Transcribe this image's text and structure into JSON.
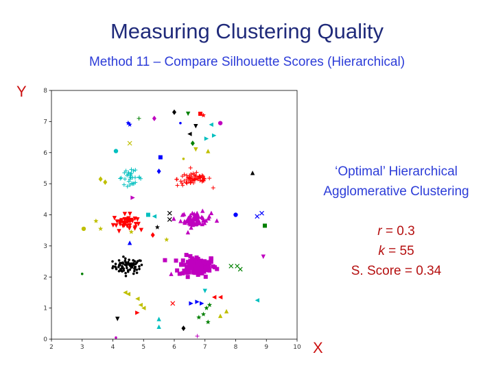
{
  "slide": {
    "title": "Measuring Clustering Quality",
    "subtitle": "Method 11 – Compare Silhouette Scores (Hierarchical)"
  },
  "info": {
    "heading_line1": "‘Optimal’ Hierarchical",
    "heading_line2": "Agglomerative Clustering",
    "r_var": "r",
    "r_value": " = 0.3",
    "k_var": "k",
    "k_value": " = 55",
    "score_text": "S. Score = 0.34",
    "heading_color": "#2c3cd8",
    "stats_color": "#b51010"
  },
  "chart_data": {
    "type": "scatter",
    "xlabel": "X",
    "ylabel": "Y",
    "xlim": [
      2,
      10
    ],
    "ylim": [
      0,
      8
    ],
    "xticks": [
      2,
      3,
      4,
      5,
      6,
      7,
      8,
      9,
      10
    ],
    "yticks": [
      0,
      1,
      2,
      3,
      4,
      5,
      6,
      7,
      8
    ],
    "grid": false,
    "dense_clusters": [
      {
        "name": "black",
        "color": "#000000",
        "marker": "dot",
        "center": [
          4.5,
          2.35
        ],
        "spread": [
          0.45,
          0.22
        ],
        "count": 75
      },
      {
        "name": "magenta-square",
        "color": "#bf00bf",
        "marker": "square",
        "center": [
          6.75,
          2.35
        ],
        "spread": [
          0.55,
          0.3
        ],
        "count": 110
      },
      {
        "name": "red-tri-down",
        "color": "#ff0000",
        "marker": "tri-down",
        "center": [
          4.4,
          3.75
        ],
        "spread": [
          0.35,
          0.22
        ],
        "count": 38
      },
      {
        "name": "magenta-tri-up",
        "color": "#bf00bf",
        "marker": "tri-up",
        "center": [
          6.7,
          3.85
        ],
        "spread": [
          0.45,
          0.22
        ],
        "count": 60
      },
      {
        "name": "cyan-plus",
        "color": "#00bfbf",
        "marker": "plus",
        "center": [
          4.55,
          5.2
        ],
        "spread": [
          0.35,
          0.2
        ],
        "count": 30
      },
      {
        "name": "red-plus",
        "color": "#ff0000",
        "marker": "plus",
        "center": [
          6.65,
          5.15
        ],
        "spread": [
          0.5,
          0.2
        ],
        "count": 60
      }
    ],
    "outliers": [
      {
        "x": 6.0,
        "y": 7.3,
        "m": "diamond",
        "c": "#000000"
      },
      {
        "x": 5.35,
        "y": 7.1,
        "m": "diamond",
        "c": "#bf00bf"
      },
      {
        "x": 4.85,
        "y": 7.1,
        "m": "plus",
        "c": "#008000"
      },
      {
        "x": 4.5,
        "y": 6.95,
        "m": "star",
        "c": "#0000ff"
      },
      {
        "x": 4.55,
        "y": 6.9,
        "m": "star",
        "c": "#0000ff"
      },
      {
        "x": 6.45,
        "y": 7.25,
        "m": "tri-down",
        "c": "#008000"
      },
      {
        "x": 6.85,
        "y": 7.25,
        "m": "square",
        "c": "#ff0000"
      },
      {
        "x": 6.95,
        "y": 7.2,
        "m": "star",
        "c": "#ff0000"
      },
      {
        "x": 6.2,
        "y": 6.95,
        "m": "dot",
        "c": "#0000ff"
      },
      {
        "x": 6.7,
        "y": 6.85,
        "m": "tri-down",
        "c": "#000000"
      },
      {
        "x": 7.2,
        "y": 6.9,
        "m": "tri-left",
        "c": "#00bfbf"
      },
      {
        "x": 7.5,
        "y": 6.95,
        "m": "circle",
        "c": "#bf00bf"
      },
      {
        "x": 6.5,
        "y": 6.6,
        "m": "tri-left",
        "c": "#000000"
      },
      {
        "x": 7.3,
        "y": 6.55,
        "m": "tri-right",
        "c": "#00bfbf"
      },
      {
        "x": 7.05,
        "y": 6.45,
        "m": "tri-right",
        "c": "#00bfbf"
      },
      {
        "x": 6.6,
        "y": 6.3,
        "m": "diamond",
        "c": "#008000"
      },
      {
        "x": 6.7,
        "y": 6.1,
        "m": "tri-down",
        "c": "#bfbf00"
      },
      {
        "x": 7.1,
        "y": 6.05,
        "m": "tri-up",
        "c": "#bfbf00"
      },
      {
        "x": 4.55,
        "y": 6.3,
        "m": "x",
        "c": "#bfbf00"
      },
      {
        "x": 4.1,
        "y": 6.05,
        "m": "circle",
        "c": "#00bfbf"
      },
      {
        "x": 5.55,
        "y": 5.85,
        "m": "square",
        "c": "#0000ff"
      },
      {
        "x": 6.3,
        "y": 5.8,
        "m": "dot",
        "c": "#bfbf00"
      },
      {
        "x": 5.5,
        "y": 5.4,
        "m": "diamond",
        "c": "#0000ff"
      },
      {
        "x": 3.6,
        "y": 5.15,
        "m": "diamond",
        "c": "#bfbf00"
      },
      {
        "x": 3.75,
        "y": 5.05,
        "m": "diamond",
        "c": "#bfbf00"
      },
      {
        "x": 8.55,
        "y": 5.35,
        "m": "tri-up",
        "c": "#000000"
      },
      {
        "x": 4.65,
        "y": 4.55,
        "m": "tri-right",
        "c": "#bf00bf"
      },
      {
        "x": 3.45,
        "y": 3.8,
        "m": "star",
        "c": "#bfbf00"
      },
      {
        "x": 3.6,
        "y": 3.55,
        "m": "star",
        "c": "#bfbf00"
      },
      {
        "x": 3.05,
        "y": 3.55,
        "m": "circle",
        "c": "#bfbf00"
      },
      {
        "x": 5.15,
        "y": 4.0,
        "m": "square",
        "c": "#00bfbf"
      },
      {
        "x": 5.35,
        "y": 3.95,
        "m": "tri-left",
        "c": "#00bfbf"
      },
      {
        "x": 5.85,
        "y": 4.05,
        "m": "x",
        "c": "#000000"
      },
      {
        "x": 5.85,
        "y": 3.85,
        "m": "x",
        "c": "#000000"
      },
      {
        "x": 5.45,
        "y": 3.6,
        "m": "star",
        "c": "#000000"
      },
      {
        "x": 5.3,
        "y": 3.35,
        "m": "diamond",
        "c": "#ff0000"
      },
      {
        "x": 4.6,
        "y": 3.45,
        "m": "star",
        "c": "#bfbf00"
      },
      {
        "x": 4.55,
        "y": 3.1,
        "m": "tri-up",
        "c": "#0000ff"
      },
      {
        "x": 5.75,
        "y": 3.2,
        "m": "star",
        "c": "#bfbf00"
      },
      {
        "x": 8.0,
        "y": 4.0,
        "m": "circle",
        "c": "#0000ff"
      },
      {
        "x": 8.7,
        "y": 3.95,
        "m": "x",
        "c": "#0000ff"
      },
      {
        "x": 8.85,
        "y": 4.05,
        "m": "x",
        "c": "#0000ff"
      },
      {
        "x": 8.95,
        "y": 3.65,
        "m": "square",
        "c": "#008000"
      },
      {
        "x": 8.9,
        "y": 2.65,
        "m": "tri-down",
        "c": "#bf00bf"
      },
      {
        "x": 3.0,
        "y": 2.1,
        "m": "dot",
        "c": "#008000"
      },
      {
        "x": 7.85,
        "y": 2.35,
        "m": "x",
        "c": "#008000"
      },
      {
        "x": 8.05,
        "y": 2.35,
        "m": "x",
        "c": "#008000"
      },
      {
        "x": 8.15,
        "y": 2.25,
        "m": "x",
        "c": "#008000"
      },
      {
        "x": 5.9,
        "y": 2.1,
        "m": "tri-up",
        "c": "#bf00bf"
      },
      {
        "x": 7.0,
        "y": 1.55,
        "m": "tri-down",
        "c": "#00bfbf"
      },
      {
        "x": 4.4,
        "y": 1.5,
        "m": "tri-left",
        "c": "#bfbf00"
      },
      {
        "x": 4.5,
        "y": 1.45,
        "m": "tri-left",
        "c": "#bfbf00"
      },
      {
        "x": 4.8,
        "y": 1.3,
        "m": "tri-left",
        "c": "#bfbf00"
      },
      {
        "x": 4.9,
        "y": 1.1,
        "m": "tri-left",
        "c": "#bfbf00"
      },
      {
        "x": 5.0,
        "y": 1.0,
        "m": "tri-left",
        "c": "#bfbf00"
      },
      {
        "x": 5.95,
        "y": 1.15,
        "m": "x",
        "c": "#ff0000"
      },
      {
        "x": 6.55,
        "y": 1.15,
        "m": "tri-right",
        "c": "#0000ff"
      },
      {
        "x": 6.75,
        "y": 1.2,
        "m": "tri-right",
        "c": "#0000ff"
      },
      {
        "x": 6.9,
        "y": 1.15,
        "m": "tri-right",
        "c": "#0000ff"
      },
      {
        "x": 7.3,
        "y": 1.35,
        "m": "tri-left",
        "c": "#ff0000"
      },
      {
        "x": 7.5,
        "y": 1.35,
        "m": "tri-left",
        "c": "#ff0000"
      },
      {
        "x": 8.7,
        "y": 1.25,
        "m": "tri-left",
        "c": "#00bfbf"
      },
      {
        "x": 4.8,
        "y": 0.85,
        "m": "tri-right",
        "c": "#ff0000"
      },
      {
        "x": 4.15,
        "y": 0.65,
        "m": "tri-down",
        "c": "#000000"
      },
      {
        "x": 5.5,
        "y": 0.65,
        "m": "tri-up",
        "c": "#00bfbf"
      },
      {
        "x": 5.5,
        "y": 0.4,
        "m": "tri-up",
        "c": "#00bfbf"
      },
      {
        "x": 6.3,
        "y": 0.35,
        "m": "diamond",
        "c": "#000000"
      },
      {
        "x": 7.05,
        "y": 1.0,
        "m": "star",
        "c": "#008000"
      },
      {
        "x": 7.15,
        "y": 1.1,
        "m": "star",
        "c": "#008000"
      },
      {
        "x": 6.95,
        "y": 0.8,
        "m": "star",
        "c": "#008000"
      },
      {
        "x": 6.8,
        "y": 0.7,
        "m": "star",
        "c": "#008000"
      },
      {
        "x": 7.1,
        "y": 0.55,
        "m": "star",
        "c": "#008000"
      },
      {
        "x": 7.5,
        "y": 0.75,
        "m": "tri-up",
        "c": "#bfbf00"
      },
      {
        "x": 7.7,
        "y": 0.9,
        "m": "tri-up",
        "c": "#bfbf00"
      },
      {
        "x": 4.1,
        "y": 0.05,
        "m": "dot",
        "c": "#bf00bf"
      },
      {
        "x": 6.75,
        "y": 0.1,
        "m": "plus",
        "c": "#bf00bf"
      }
    ]
  }
}
